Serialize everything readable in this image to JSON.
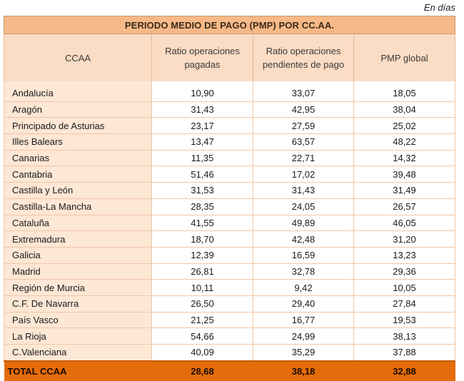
{
  "unit_note": "En días",
  "title": "PERIODO MEDIO DE PAGO (PMP) POR CC.AA.",
  "headers": {
    "ccaa": "CCAA",
    "paid_line1": "Ratio operaciones",
    "paid_line2": "pagadas",
    "pending_line1": "Ratio operaciones",
    "pending_line2": "pendientes de pago",
    "global": "PMP global"
  },
  "rows": [
    {
      "name": "Andalucía",
      "paid": "10,90",
      "pending": "33,07",
      "global": "18,05"
    },
    {
      "name": "Aragón",
      "paid": "31,43",
      "pending": "42,95",
      "global": "38,04"
    },
    {
      "name": "Principado de Asturias",
      "paid": "23,17",
      "pending": "27,59",
      "global": "25,02"
    },
    {
      "name": "Illes Balears",
      "paid": "13,47",
      "pending": "63,57",
      "global": "48,22"
    },
    {
      "name": "Canarias",
      "paid": "11,35",
      "pending": "22,71",
      "global": "14,32"
    },
    {
      "name": "Cantabria",
      "paid": "51,46",
      "pending": "17,02",
      "global": "39,48"
    },
    {
      "name": "Castilla y León",
      "paid": "31,53",
      "pending": "31,43",
      "global": "31,49"
    },
    {
      "name": "Castilla-La Mancha",
      "paid": "28,35",
      "pending": "24,05",
      "global": "26,57"
    },
    {
      "name": "Cataluña",
      "paid": "41,55",
      "pending": "49,89",
      "global": "46,05"
    },
    {
      "name": "Extremadura",
      "paid": "18,70",
      "pending": "42,48",
      "global": "31,20"
    },
    {
      "name": "Galicia",
      "paid": "12,39",
      "pending": "16,59",
      "global": "13,23"
    },
    {
      "name": "Madrid",
      "paid": "26,81",
      "pending": "32,78",
      "global": "29,36"
    },
    {
      "name": "Región de Murcia",
      "paid": "10,11",
      "pending": "9,42",
      "global": "10,05"
    },
    {
      "name": "C.F. De Navarra",
      "paid": "26,50",
      "pending": "29,40",
      "global": "27,84"
    },
    {
      "name": "País Vasco",
      "paid": "21,25",
      "pending": "16,77",
      "global": "19,53"
    },
    {
      "name": "La Rioja",
      "paid": "54,66",
      "pending": "24,99",
      "global": "38,13"
    },
    {
      "name": "C.Valenciana",
      "paid": "40,09",
      "pending": "35,29",
      "global": "37,88"
    }
  ],
  "total": {
    "name": "TOTAL CCAA",
    "paid": "28,68",
    "pending": "38,18",
    "global": "32,88"
  }
}
